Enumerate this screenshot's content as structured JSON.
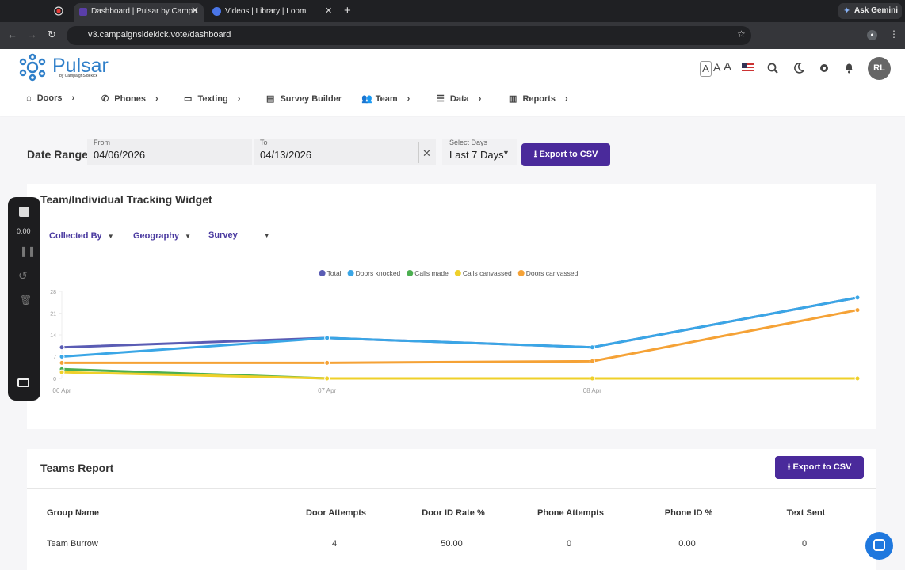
{
  "browser": {
    "tabs": [
      "Dashboard | Pulsar by Campa",
      "Videos | Library | Loom"
    ],
    "ask_gemini": "Ask Gemini",
    "url": "v3.campaignsidekick.vote/dashboard"
  },
  "header": {
    "logo": "Pulsar",
    "logo_sub": "by CampaignSidekick",
    "font_sizes": [
      "A",
      "A",
      "A"
    ],
    "avatar": "RL",
    "nav": [
      "Doors",
      "Phones",
      "Texting",
      "Survey Builder",
      "Team",
      "Data",
      "Reports"
    ]
  },
  "filters": {
    "title": "Date Range",
    "from_label": "From",
    "from": "04/06/2026",
    "to_label": "To",
    "to": "04/13/2026",
    "days_label": "Select Days",
    "days": "Last 7 Days",
    "export": "Export to CSV"
  },
  "recorder": {
    "time": "0:00"
  },
  "widget": {
    "title": "Team/Individual Tracking Widget",
    "dropdowns": [
      "Collected By",
      "Geography",
      "Survey"
    ]
  },
  "chart_data": {
    "type": "line",
    "categories": [
      "06 Apr",
      "07 Apr",
      "08 Apr",
      null
    ],
    "series": [
      {
        "name": "Total",
        "color": "#5a5cb4",
        "values": [
          10,
          13,
          10,
          26
        ]
      },
      {
        "name": "Doors knocked",
        "color": "#3aa6e6",
        "values": [
          7,
          13,
          10,
          26
        ]
      },
      {
        "name": "Calls made",
        "color": "#4caf50",
        "values": [
          3,
          0,
          0,
          0
        ]
      },
      {
        "name": "Calls canvassed",
        "color": "#efd02a",
        "values": [
          2,
          0,
          0,
          0
        ]
      },
      {
        "name": "Doors canvassed",
        "color": "#f5a236",
        "values": [
          5,
          5,
          5.5,
          22
        ]
      }
    ],
    "ylim": [
      0,
      28
    ],
    "yticks": [
      0,
      7,
      14,
      21,
      28
    ],
    "legend": "top"
  },
  "teams_report": {
    "title": "Teams Report",
    "export": "Export to CSV",
    "table": {
      "columns": [
        "Group Name",
        "Door Attempts",
        "Door ID Rate %",
        "Phone Attempts",
        "Phone ID %",
        "Text Sent"
      ],
      "rows": [
        [
          "Team Burrow",
          "4",
          "50.00",
          "0",
          "0.00",
          "0"
        ]
      ]
    }
  }
}
